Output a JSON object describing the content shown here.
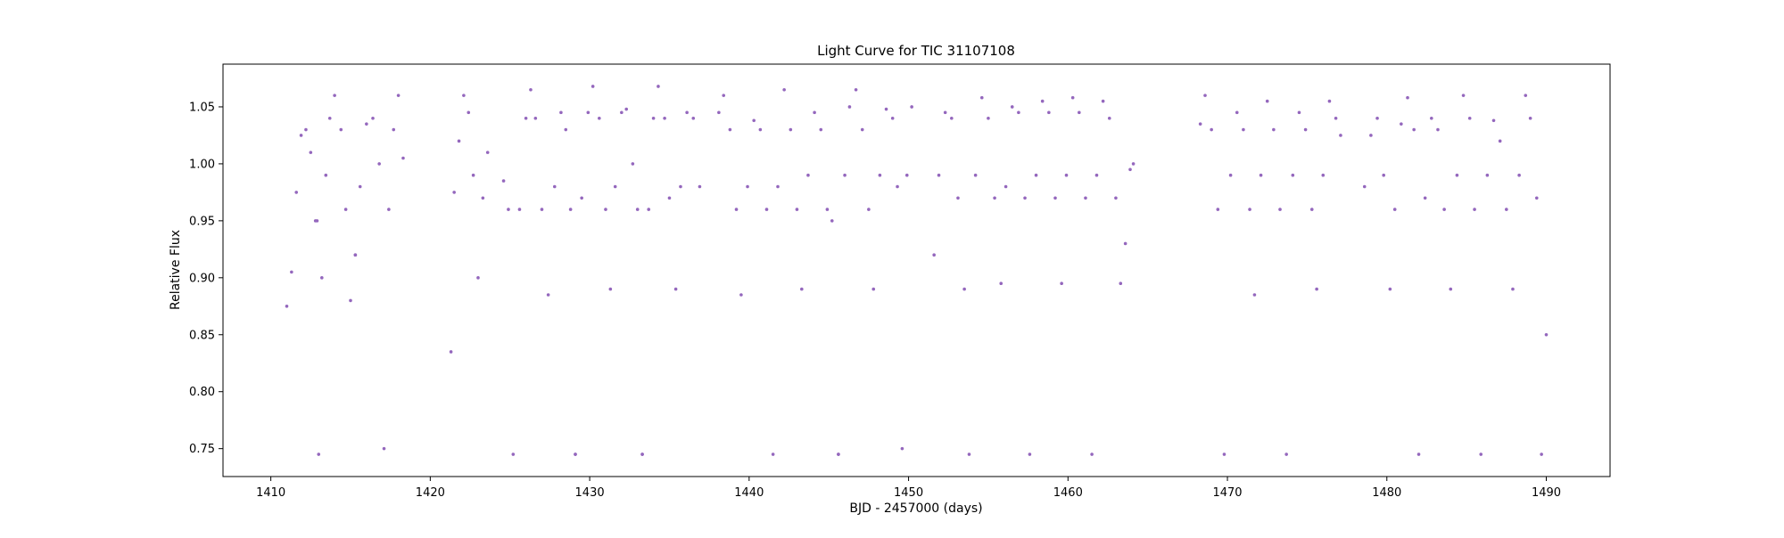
{
  "chart_data": {
    "type": "scatter",
    "title": "Light Curve for TIC 31107108",
    "xlabel": "BJD - 2457000 (days)",
    "ylabel": "Relative Flux",
    "xlim": [
      1407,
      1494
    ],
    "ylim": [
      0.7255,
      1.0875
    ],
    "xticks": [
      1410,
      1420,
      1430,
      1440,
      1450,
      1460,
      1470,
      1480,
      1490
    ],
    "xtick_labels": [
      "1410",
      "1420",
      "1430",
      "1440",
      "1450",
      "1460",
      "1470",
      "1480",
      "1490"
    ],
    "yticks": [
      0.75,
      0.8,
      0.85,
      0.9,
      0.95,
      1.0,
      1.05
    ],
    "ytick_labels": [
      "0.75",
      "0.80",
      "0.85",
      "0.90",
      "0.95",
      "1.00",
      "1.05"
    ],
    "grid": false,
    "marker_color": "#9467bd",
    "series": [
      {
        "segments": [
          {
            "x": [
              1411.0,
              1411.3,
              1411.6,
              1411.9,
              1412.2,
              1412.5,
              1412.8
            ],
            "y": [
              0.875,
              0.905,
              0.975,
              1.025,
              1.03,
              1.01,
              0.95
            ]
          },
          {
            "x": [
              1412.9,
              1413.0,
              1413.2,
              1413.45,
              1413.7,
              1414.0,
              1414.4,
              1414.7,
              1415.0,
              1415.3
            ],
            "y": [
              0.95,
              0.745,
              0.9,
              0.99,
              1.04,
              1.06,
              1.03,
              0.96,
              0.88,
              0.92
            ]
          },
          {
            "x": [
              1415.3,
              1415.6,
              1416.0,
              1416.4,
              1416.8,
              1417.1,
              1417.4,
              1417.7,
              1418.0,
              1418.3
            ],
            "y": [
              0.92,
              0.98,
              1.035,
              1.04,
              1.0,
              0.75,
              0.96,
              1.03,
              1.06,
              1.005
            ]
          },
          {
            "x": [
              1421.3,
              1421.5,
              1421.8,
              1422.1,
              1422.4,
              1422.7,
              1423.0,
              1423.3,
              1423.6
            ],
            "y": [
              0.835,
              0.975,
              1.02,
              1.06,
              1.045,
              0.99,
              0.9,
              0.97,
              1.01
            ]
          },
          {
            "x": [
              1424.6,
              1424.9,
              1425.2,
              1425.6,
              1426.0,
              1426.3,
              1426.6,
              1427.0,
              1427.4,
              1427.8,
              1428.2,
              1428.5,
              1428.8,
              1429.1
            ],
            "y": [
              0.985,
              0.96,
              0.745,
              0.96,
              1.04,
              1.065,
              1.04,
              0.96,
              0.885,
              0.98,
              1.045,
              1.03,
              0.96,
              0.745
            ]
          },
          {
            "x": [
              1429.1,
              1429.5,
              1429.9,
              1430.2,
              1430.6,
              1431.0,
              1431.3,
              1431.6,
              1432.0,
              1432.3,
              1432.7,
              1433.0,
              1433.3
            ],
            "y": [
              0.745,
              0.97,
              1.045,
              1.068,
              1.04,
              0.96,
              0.89,
              0.98,
              1.045,
              1.048,
              1.0,
              0.96,
              0.745
            ]
          },
          {
            "x": [
              1433.3,
              1433.7,
              1434.0,
              1434.3,
              1434.7,
              1435.0,
              1435.4,
              1435.7,
              1436.1,
              1436.5,
              1436.9
            ],
            "y": [
              0.745,
              0.96,
              1.04,
              1.068,
              1.04,
              0.97,
              0.89,
              0.98,
              1.045,
              1.04,
              0.98
            ]
          },
          {
            "x": [
              1438.1,
              1438.4,
              1438.8,
              1439.2,
              1439.5,
              1439.9,
              1440.3,
              1440.7,
              1441.1,
              1441.5,
              1441.8,
              1442.2,
              1442.6,
              1443.0,
              1443.3,
              1443.7,
              1444.1,
              1444.5,
              1444.9,
              1445.2,
              1445.6
            ],
            "y": [
              1.045,
              1.06,
              1.03,
              0.96,
              0.885,
              0.98,
              1.038,
              1.03,
              0.96,
              0.745,
              0.98,
              1.065,
              1.03,
              0.96,
              0.89,
              0.99,
              1.045,
              1.03,
              0.96,
              0.95,
              0.745
            ]
          },
          {
            "x": [
              1445.6,
              1446.0,
              1446.3,
              1446.7,
              1447.1,
              1447.5,
              1447.8,
              1448.2,
              1448.6,
              1449.0,
              1449.3,
              1449.6,
              1449.9,
              1450.2
            ],
            "y": [
              0.745,
              0.99,
              1.05,
              1.065,
              1.03,
              0.96,
              0.89,
              0.99,
              1.048,
              1.04,
              0.98,
              0.75,
              0.99,
              1.05
            ]
          },
          {
            "x": [
              1451.6,
              1451.9,
              1452.3,
              1452.7,
              1453.1,
              1453.5,
              1453.8,
              1454.2,
              1454.6,
              1455.0,
              1455.4,
              1455.8,
              1456.1,
              1456.5,
              1456.9,
              1457.3,
              1457.6,
              1458.0,
              1458.4,
              1458.8,
              1459.2,
              1459.6,
              1459.9,
              1460.3,
              1460.7,
              1461.1,
              1461.5,
              1461.8,
              1462.2,
              1462.6,
              1463.0,
              1463.3,
              1463.6,
              1463.9,
              1464.1
            ],
            "y": [
              0.92,
              0.99,
              1.045,
              1.04,
              0.97,
              0.89,
              0.745,
              0.99,
              1.058,
              1.04,
              0.97,
              0.895,
              0.98,
              1.05,
              1.045,
              0.97,
              0.745,
              0.99,
              1.055,
              1.045,
              0.97,
              0.895,
              0.99,
              1.058,
              1.045,
              0.97,
              0.745,
              0.99,
              1.055,
              1.04,
              0.97,
              0.895,
              0.93,
              0.995,
              1.0
            ]
          },
          {
            "x": [
              1468.3,
              1468.6,
              1469.0,
              1469.4,
              1469.8,
              1470.2,
              1470.6,
              1471.0,
              1471.4,
              1471.7,
              1472.1,
              1472.5,
              1472.9,
              1473.3,
              1473.7,
              1474.1,
              1474.5,
              1474.9,
              1475.3,
              1475.6,
              1476.0,
              1476.4,
              1476.8,
              1477.1
            ],
            "y": [
              1.035,
              1.06,
              1.03,
              0.96,
              0.745,
              0.99,
              1.045,
              1.03,
              0.96,
              0.885,
              0.99,
              1.055,
              1.03,
              0.96,
              0.745,
              0.99,
              1.045,
              1.03,
              0.96,
              0.89,
              0.99,
              1.055,
              1.04,
              1.025
            ]
          },
          {
            "x": [
              1478.6,
              1479.0,
              1479.4,
              1479.8,
              1480.2,
              1480.5,
              1480.9,
              1481.3,
              1481.7,
              1482.0,
              1482.4,
              1482.8,
              1483.2,
              1483.6,
              1484.0,
              1484.4,
              1484.8,
              1485.2,
              1485.5,
              1485.9,
              1486.3,
              1486.7,
              1487.1,
              1487.5,
              1487.9,
              1488.3,
              1488.7,
              1489.0,
              1489.4,
              1489.7,
              1490.0
            ],
            "y": [
              0.98,
              1.025,
              1.04,
              0.99,
              0.89,
              0.96,
              1.035,
              1.058,
              1.03,
              0.745,
              0.97,
              1.04,
              1.03,
              0.96,
              0.89,
              0.99,
              1.06,
              1.04,
              0.96,
              0.745,
              0.99,
              1.038,
              1.02,
              0.96,
              0.89,
              0.99,
              1.06,
              1.04,
              0.97,
              0.745,
              0.85
            ]
          }
        ]
      }
    ]
  }
}
